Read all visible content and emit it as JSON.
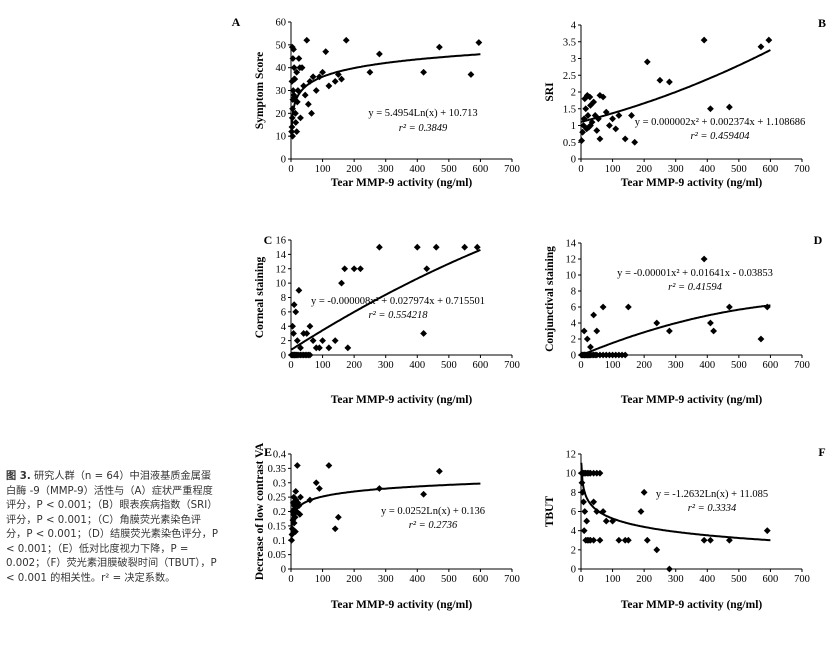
{
  "caption": {
    "fig_label": "图 3.",
    "text": "研究人群（n = 64）中泪液基质金属蛋白酶 -9（MMP-9）活性与（A）症状严重程度评分，P < 0.001；（B）眼表疾病指数（SRI）评分，P < 0.001；（C）角膜荧光素染色评分，P < 0.001；（D）结膜荧光素染色评分，P < 0.001；（E）低对比度视力下降，P = 0.002；（F）荧光素泪膜破裂时间（TBUT），P < 0.001 的相关性。r² = 决定系数。"
  },
  "chart_data": [
    {
      "id": "A",
      "type": "scatter",
      "ylabel": "Symptom Score",
      "xlabel": "Tear MMP-9 activity (ng/ml)",
      "xlim": [
        0,
        700
      ],
      "xticks": [
        0,
        100,
        200,
        300,
        400,
        500,
        600,
        700
      ],
      "ylim": [
        0,
        60
      ],
      "yticks": [
        0,
        10,
        20,
        30,
        40,
        50,
        60
      ],
      "equation": "y = 5.4954Ln(x) + 10.713",
      "r2_label": "r² = 0.3849",
      "trend": {
        "kind": "log",
        "a": 5.4954,
        "b": 10.713
      },
      "points": [
        [
          2,
          12
        ],
        [
          3,
          14
        ],
        [
          4,
          18
        ],
        [
          5,
          22
        ],
        [
          6,
          26
        ],
        [
          7,
          30
        ],
        [
          4,
          49
        ],
        [
          8,
          48
        ],
        [
          6,
          44
        ],
        [
          10,
          40
        ],
        [
          12,
          35
        ],
        [
          9,
          28
        ],
        [
          14,
          20
        ],
        [
          15,
          16
        ],
        [
          18,
          12
        ],
        [
          20,
          25
        ],
        [
          22,
          30
        ],
        [
          25,
          44
        ],
        [
          28,
          40
        ],
        [
          30,
          18
        ],
        [
          35,
          40
        ],
        [
          40,
          32
        ],
        [
          45,
          28
        ],
        [
          50,
          52
        ],
        [
          55,
          24
        ],
        [
          60,
          34
        ],
        [
          65,
          20
        ],
        [
          70,
          36
        ],
        [
          80,
          30
        ],
        [
          90,
          36
        ],
        [
          100,
          38
        ],
        [
          110,
          47
        ],
        [
          120,
          32
        ],
        [
          140,
          34
        ],
        [
          150,
          37
        ],
        [
          160,
          35
        ],
        [
          175,
          52
        ],
        [
          250,
          38
        ],
        [
          280,
          46
        ],
        [
          420,
          38
        ],
        [
          470,
          49
        ],
        [
          570,
          37
        ],
        [
          595,
          51
        ],
        [
          10,
          35
        ],
        [
          12,
          27
        ],
        [
          18,
          38
        ],
        [
          3,
          34
        ],
        [
          5,
          10
        ]
      ]
    },
    {
      "id": "B",
      "type": "scatter",
      "ylabel": "SRI",
      "xlabel": "Tear MMP-9 activity (ng/ml)",
      "xlim": [
        0,
        700
      ],
      "xticks": [
        0,
        100,
        200,
        300,
        400,
        500,
        600,
        700
      ],
      "ylim": [
        0,
        4
      ],
      "yticks": [
        0,
        0.5,
        1,
        1.5,
        2,
        2.5,
        3,
        3.5,
        4
      ],
      "equation": "y = 0.000002x² + 0.002374x + 1.108686",
      "r2_label": "r² = 0.459404",
      "trend": {
        "kind": "poly",
        "c2": 2e-06,
        "c1": 0.002374,
        "c0": 1.108686
      },
      "points": [
        [
          2,
          0.55
        ],
        [
          5,
          0.8
        ],
        [
          8,
          1.0
        ],
        [
          10,
          1.2
        ],
        [
          12,
          1.8
        ],
        [
          15,
          1.5
        ],
        [
          18,
          0.9
        ],
        [
          20,
          1.9
        ],
        [
          22,
          1.3
        ],
        [
          25,
          0.95
        ],
        [
          28,
          1.85
        ],
        [
          30,
          1.6
        ],
        [
          35,
          1.1
        ],
        [
          40,
          1.7
        ],
        [
          45,
          1.3
        ],
        [
          50,
          0.85
        ],
        [
          55,
          1.2
        ],
        [
          60,
          0.6
        ],
        [
          70,
          1.85
        ],
        [
          80,
          1.4
        ],
        [
          90,
          1.0
        ],
        [
          100,
          1.2
        ],
        [
          110,
          0.9
        ],
        [
          120,
          1.3
        ],
        [
          140,
          0.6
        ],
        [
          160,
          1.3
        ],
        [
          170,
          0.5
        ],
        [
          210,
          2.9
        ],
        [
          250,
          2.35
        ],
        [
          280,
          2.3
        ],
        [
          390,
          3.55
        ],
        [
          410,
          1.5
        ],
        [
          470,
          1.55
        ],
        [
          570,
          3.35
        ],
        [
          595,
          3.55
        ],
        [
          30,
          1.0
        ],
        [
          60,
          1.9
        ]
      ]
    },
    {
      "id": "C",
      "type": "scatter",
      "ylabel": "Corneal staining",
      "xlabel": "Tear MMP-9 activity (ng/ml)",
      "xlim": [
        0,
        700
      ],
      "xticks": [
        0,
        100,
        200,
        300,
        400,
        500,
        600,
        700
      ],
      "ylim": [
        0,
        16
      ],
      "yticks": [
        0,
        2,
        4,
        6,
        8,
        10,
        12,
        14,
        16
      ],
      "equation": "y = -0.000008x² + 0.027974x + 0.715501",
      "r2_label": "r² = 0.554218",
      "trend": {
        "kind": "poly",
        "c2": -8e-06,
        "c1": 0.027974,
        "c0": 0.715501
      },
      "points": [
        [
          2,
          0
        ],
        [
          5,
          0
        ],
        [
          8,
          0
        ],
        [
          10,
          0
        ],
        [
          12,
          0
        ],
        [
          15,
          0
        ],
        [
          18,
          0
        ],
        [
          20,
          0
        ],
        [
          25,
          0
        ],
        [
          30,
          0
        ],
        [
          35,
          0
        ],
        [
          40,
          0
        ],
        [
          45,
          0
        ],
        [
          50,
          0
        ],
        [
          55,
          0
        ],
        [
          60,
          0
        ],
        [
          5,
          4
        ],
        [
          8,
          3
        ],
        [
          10,
          7
        ],
        [
          15,
          6
        ],
        [
          20,
          2
        ],
        [
          25,
          9
        ],
        [
          30,
          1
        ],
        [
          40,
          3
        ],
        [
          50,
          3
        ],
        [
          60,
          4
        ],
        [
          70,
          2
        ],
        [
          80,
          1
        ],
        [
          90,
          1
        ],
        [
          100,
          2
        ],
        [
          120,
          1
        ],
        [
          140,
          2
        ],
        [
          160,
          10
        ],
        [
          170,
          12
        ],
        [
          180,
          1
        ],
        [
          200,
          12
        ],
        [
          220,
          12
        ],
        [
          280,
          15
        ],
        [
          400,
          15
        ],
        [
          420,
          3
        ],
        [
          430,
          12
        ],
        [
          460,
          15
        ],
        [
          550,
          15
        ],
        [
          590,
          15
        ]
      ]
    },
    {
      "id": "D",
      "type": "scatter",
      "ylabel": "Conjunctival staining",
      "xlabel": "Tear MMP-9 activity (ng/ml)",
      "xlim": [
        0,
        700
      ],
      "xticks": [
        0,
        100,
        200,
        300,
        400,
        500,
        600,
        700
      ],
      "ylim": [
        0,
        14
      ],
      "yticks": [
        0,
        2,
        4,
        6,
        8,
        10,
        12,
        14
      ],
      "equation": "y = -0.00001x² + 0.01641x - 0.03853",
      "r2_label": "r² = 0.41594",
      "trend": {
        "kind": "poly",
        "c2": -1e-05,
        "c1": 0.01641,
        "c0": -0.03853
      },
      "points": [
        [
          2,
          0
        ],
        [
          5,
          0
        ],
        [
          8,
          0
        ],
        [
          10,
          0
        ],
        [
          12,
          0
        ],
        [
          15,
          0
        ],
        [
          18,
          0
        ],
        [
          20,
          0
        ],
        [
          22,
          0
        ],
        [
          25,
          0
        ],
        [
          28,
          0
        ],
        [
          30,
          0
        ],
        [
          35,
          0
        ],
        [
          40,
          0
        ],
        [
          45,
          0
        ],
        [
          50,
          0
        ],
        [
          60,
          0
        ],
        [
          70,
          0
        ],
        [
          80,
          0
        ],
        [
          90,
          0
        ],
        [
          100,
          0
        ],
        [
          110,
          0
        ],
        [
          120,
          0
        ],
        [
          130,
          0
        ],
        [
          140,
          0
        ],
        [
          10,
          3
        ],
        [
          20,
          2
        ],
        [
          30,
          1
        ],
        [
          40,
          5
        ],
        [
          50,
          3
        ],
        [
          70,
          6
        ],
        [
          150,
          6
        ],
        [
          240,
          4
        ],
        [
          280,
          3
        ],
        [
          390,
          12
        ],
        [
          410,
          4
        ],
        [
          420,
          3
        ],
        [
          470,
          6
        ],
        [
          570,
          2
        ],
        [
          590,
          6
        ]
      ]
    },
    {
      "id": "E",
      "type": "scatter",
      "ylabel": "Decrease of low contrast VA",
      "xlabel": "Tear MMP-9 activity (ng/ml)",
      "xlim": [
        0,
        700
      ],
      "xticks": [
        0,
        100,
        200,
        300,
        400,
        500,
        600,
        700
      ],
      "ylim": [
        0,
        0.4
      ],
      "yticks": [
        0,
        0.05,
        0.1,
        0.15,
        0.2,
        0.25,
        0.3,
        0.35,
        0.4
      ],
      "equation": "y = 0.0252Ln(x) + 0.136",
      "r2_label": "r² = 0.2736",
      "trend": {
        "kind": "log",
        "a": 0.0252,
        "b": 0.136
      },
      "points": [
        [
          2,
          0.1
        ],
        [
          3,
          0.12
        ],
        [
          4,
          0.14
        ],
        [
          5,
          0.2
        ],
        [
          6,
          0.17
        ],
        [
          7,
          0.23
        ],
        [
          8,
          0.19
        ],
        [
          9,
          0.25
        ],
        [
          10,
          0.16
        ],
        [
          11,
          0.22
        ],
        [
          12,
          0.21
        ],
        [
          13,
          0.18
        ],
        [
          14,
          0.13
        ],
        [
          15,
          0.27
        ],
        [
          16,
          0.24
        ],
        [
          18,
          0.2
        ],
        [
          20,
          0.36
        ],
        [
          22,
          0.23
        ],
        [
          25,
          0.22
        ],
        [
          28,
          0.19
        ],
        [
          30,
          0.25
        ],
        [
          60,
          0.24
        ],
        [
          80,
          0.3
        ],
        [
          90,
          0.28
        ],
        [
          120,
          0.36
        ],
        [
          140,
          0.14
        ],
        [
          150,
          0.18
        ],
        [
          280,
          0.28
        ],
        [
          420,
          0.26
        ],
        [
          470,
          0.34
        ]
      ]
    },
    {
      "id": "F",
      "type": "scatter",
      "ylabel": "TBUT",
      "xlabel": "Tear MMP-9 activity (ng/ml)",
      "xlim": [
        0,
        700
      ],
      "xticks": [
        0,
        100,
        200,
        300,
        400,
        500,
        600,
        700
      ],
      "ylim": [
        0,
        12
      ],
      "yticks": [
        0,
        2,
        4,
        6,
        8,
        10,
        12
      ],
      "equation": "y = -1.2632Ln(x) + 11.085",
      "r2_label": "r² = 0.3334",
      "trend": {
        "kind": "log",
        "a": -1.2632,
        "b": 11.085
      },
      "points": [
        [
          2,
          10
        ],
        [
          5,
          10
        ],
        [
          8,
          10
        ],
        [
          12,
          10
        ],
        [
          15,
          10
        ],
        [
          20,
          10
        ],
        [
          25,
          10
        ],
        [
          30,
          10
        ],
        [
          40,
          10
        ],
        [
          50,
          10
        ],
        [
          60,
          10
        ],
        [
          3,
          9
        ],
        [
          5,
          8
        ],
        [
          8,
          7
        ],
        [
          10,
          4
        ],
        [
          12,
          6
        ],
        [
          15,
          3
        ],
        [
          18,
          5
        ],
        [
          20,
          3
        ],
        [
          25,
          3
        ],
        [
          30,
          3
        ],
        [
          40,
          3
        ],
        [
          50,
          6
        ],
        [
          60,
          3
        ],
        [
          70,
          6
        ],
        [
          80,
          5
        ],
        [
          100,
          5
        ],
        [
          120,
          3
        ],
        [
          140,
          3
        ],
        [
          150,
          3
        ],
        [
          190,
          6
        ],
        [
          200,
          8
        ],
        [
          210,
          3
        ],
        [
          240,
          2
        ],
        [
          280,
          0
        ],
        [
          390,
          3
        ],
        [
          410,
          3
        ],
        [
          470,
          3
        ],
        [
          590,
          4
        ],
        [
          40,
          7
        ]
      ]
    }
  ]
}
